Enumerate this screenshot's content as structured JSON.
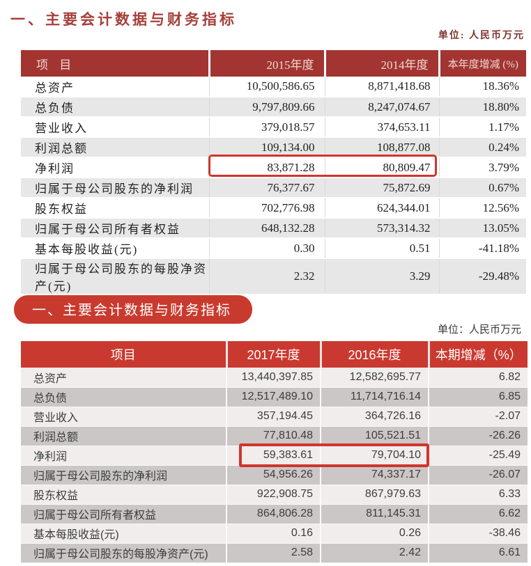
{
  "accent_colors": {
    "table1_header_red": "#a23531",
    "table1_title_red": "#a5403a",
    "table2_header_red": "#ca392f",
    "highlight_box_red": "#cf352c"
  },
  "section1": {
    "title": "一、主要会计数据与财务指标",
    "unit": "单位: 人民币万元",
    "table": {
      "headers": {
        "item": "项  目",
        "year_current": "2015年度",
        "year_previous": "2014年度",
        "change": "本年度增减 (%)"
      },
      "rows": [
        {
          "label": "总资产",
          "current": "10,500,586.65",
          "previous": "8,871,418.68",
          "change": "18.36%"
        },
        {
          "label": "总负债",
          "current": "9,797,809.66",
          "previous": "8,247,074.67",
          "change": "18.80%"
        },
        {
          "label": "营业收入",
          "current": "379,018.57",
          "previous": "374,653.11",
          "change": "1.17%"
        },
        {
          "label": "利润总额",
          "current": "109,134.00",
          "previous": "108,877.08",
          "change": "0.24%"
        },
        {
          "label": "净利润",
          "current": "83,871.28",
          "previous": "80,809.47",
          "change": "3.79%"
        },
        {
          "label": "归属于母公司股东的净利润",
          "current": "76,377.67",
          "previous": "75,872.69",
          "change": "0.67%"
        },
        {
          "label": "股东权益",
          "current": "702,776.98",
          "previous": "624,344.01",
          "change": "12.56%"
        },
        {
          "label": "归属于母公司所有者权益",
          "current": "648,132.28",
          "previous": "573,314.32",
          "change": "13.05%"
        },
        {
          "label": "基本每股收益(元)",
          "current": "0.30",
          "previous": "0.51",
          "change": "-41.18%"
        },
        {
          "label": "归属于母公司股东的每股净资产(元)",
          "current": "2.32",
          "previous": "3.29",
          "change": "-29.48%"
        }
      ],
      "highlighted_row": "净利润"
    }
  },
  "section2": {
    "title": "一、主要会计数据与财务指标",
    "unit": "单位：人民币万元",
    "table": {
      "headers": {
        "item": "项目",
        "year_current": "2017年度",
        "year_previous": "2016年度",
        "change": "本期增减（%）"
      },
      "rows": [
        {
          "label": "总资产",
          "current": "13,440,397.85",
          "previous": "12,582,695.77",
          "change": "6.82"
        },
        {
          "label": "总负债",
          "current": "12,517,489.10",
          "previous": "11,714,716.14",
          "change": "6.85"
        },
        {
          "label": "营业收入",
          "current": "357,194.45",
          "previous": "364,726.16",
          "change": "-2.07"
        },
        {
          "label": "利润总额",
          "current": "77,810.48",
          "previous": "105,521.51",
          "change": "-26.26"
        },
        {
          "label": "净利润",
          "current": "59,383.61",
          "previous": "79,704.10",
          "change": "-25.49"
        },
        {
          "label": "归属于母公司股东的净利润",
          "current": "54,956.26",
          "previous": "74,337.17",
          "change": "-26.07"
        },
        {
          "label": "股东权益",
          "current": "922,908.75",
          "previous": "867,979.63",
          "change": "6.33"
        },
        {
          "label": "归属于母公司所有者权益",
          "current": "864,806.28",
          "previous": "811,145.31",
          "change": "6.62"
        },
        {
          "label": "基本每股收益(元)",
          "current": "0.16",
          "previous": "0.26",
          "change": "-38.46"
        },
        {
          "label": "归属于母公司股东的每股净资产(元)",
          "current": "2.58",
          "previous": "2.42",
          "change": "6.61"
        }
      ],
      "highlighted_row": "净利润"
    }
  }
}
